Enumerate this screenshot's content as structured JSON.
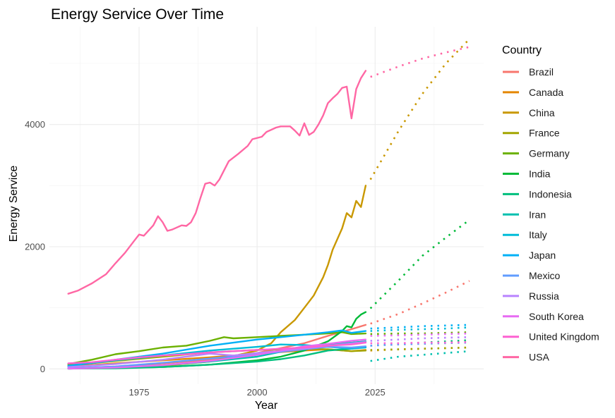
{
  "chart_data": {
    "type": "line",
    "title": "Energy Service Over Time",
    "xlabel": "Year",
    "ylabel": "Energy Service",
    "xlim": [
      1956,
      2048
    ],
    "ylim": [
      -250,
      5600
    ],
    "xticks": [
      1975,
      2000,
      2025
    ],
    "yticks": [
      0,
      2000,
      4000
    ],
    "grid": true,
    "legend": {
      "title": "Country",
      "position": "right"
    },
    "note": "solid = historical (1960–2023), dotted = projection (2024–2045)",
    "series": [
      {
        "name": "Brazil",
        "color": "#F8766D",
        "historical": [
          [
            1960,
            10
          ],
          [
            1970,
            40
          ],
          [
            1980,
            90
          ],
          [
            1990,
            150
          ],
          [
            2000,
            260
          ],
          [
            2010,
            420
          ],
          [
            2015,
            540
          ],
          [
            2020,
            650
          ],
          [
            2023,
            720
          ]
        ],
        "projection": [
          [
            2024,
            740
          ],
          [
            2030,
            900
          ],
          [
            2035,
            1070
          ],
          [
            2040,
            1250
          ],
          [
            2045,
            1440
          ]
        ]
      },
      {
        "name": "Canada",
        "color": "#E58700",
        "historical": [
          [
            1960,
            40
          ],
          [
            1970,
            90
          ],
          [
            1980,
            140
          ],
          [
            1990,
            190
          ],
          [
            2000,
            250
          ],
          [
            2010,
            300
          ],
          [
            2015,
            320
          ],
          [
            2020,
            290
          ],
          [
            2023,
            310
          ]
        ],
        "projection": [
          [
            2024,
            300
          ],
          [
            2030,
            320
          ],
          [
            2035,
            330
          ],
          [
            2040,
            340
          ],
          [
            2045,
            350
          ]
        ]
      },
      {
        "name": "China",
        "color": "#C99800",
        "historical": [
          [
            1960,
            10
          ],
          [
            1970,
            20
          ],
          [
            1980,
            50
          ],
          [
            1990,
            120
          ],
          [
            2000,
            300
          ],
          [
            2003,
            420
          ],
          [
            2005,
            600
          ],
          [
            2008,
            800
          ],
          [
            2010,
            1000
          ],
          [
            2012,
            1200
          ],
          [
            2014,
            1500
          ],
          [
            2015,
            1700
          ],
          [
            2016,
            1950
          ],
          [
            2018,
            2300
          ],
          [
            2019,
            2550
          ],
          [
            2020,
            2480
          ],
          [
            2021,
            2750
          ],
          [
            2022,
            2650
          ],
          [
            2023,
            3000
          ]
        ],
        "projection": [
          [
            2024,
            3100
          ],
          [
            2030,
            3900
          ],
          [
            2035,
            4500
          ],
          [
            2040,
            5000
          ],
          [
            2045,
            5400
          ]
        ]
      },
      {
        "name": "France",
        "color": "#A3A500",
        "historical": [
          [
            1960,
            60
          ],
          [
            1970,
            130
          ],
          [
            1980,
            200
          ],
          [
            1990,
            270
          ],
          [
            2000,
            310
          ],
          [
            2010,
            330
          ],
          [
            2015,
            320
          ],
          [
            2020,
            290
          ],
          [
            2023,
            300
          ]
        ],
        "projection": [
          [
            2024,
            310
          ],
          [
            2030,
            320
          ],
          [
            2035,
            330
          ],
          [
            2040,
            340
          ],
          [
            2045,
            350
          ]
        ]
      },
      {
        "name": "Germany",
        "color": "#6BB100",
        "historical": [
          [
            1960,
            80
          ],
          [
            1965,
            150
          ],
          [
            1970,
            240
          ],
          [
            1975,
            290
          ],
          [
            1980,
            350
          ],
          [
            1985,
            380
          ],
          [
            1990,
            460
          ],
          [
            1993,
            520
          ],
          [
            1995,
            500
          ],
          [
            2000,
            520
          ],
          [
            2005,
            540
          ],
          [
            2010,
            560
          ],
          [
            2015,
            580
          ],
          [
            2018,
            600
          ],
          [
            2020,
            570
          ],
          [
            2023,
            580
          ]
        ],
        "projection": [
          [
            2024,
            570
          ],
          [
            2030,
            580
          ],
          [
            2035,
            580
          ],
          [
            2040,
            590
          ],
          [
            2045,
            600
          ]
        ]
      },
      {
        "name": "India",
        "color": "#00BA38",
        "historical": [
          [
            1960,
            5
          ],
          [
            1970,
            15
          ],
          [
            1980,
            30
          ],
          [
            1990,
            70
          ],
          [
            2000,
            140
          ],
          [
            2005,
            200
          ],
          [
            2010,
            300
          ],
          [
            2015,
            450
          ],
          [
            2018,
            620
          ],
          [
            2019,
            700
          ],
          [
            2020,
            680
          ],
          [
            2021,
            820
          ],
          [
            2022,
            890
          ],
          [
            2023,
            930
          ]
        ],
        "projection": [
          [
            2024,
            990
          ],
          [
            2030,
            1450
          ],
          [
            2035,
            1850
          ],
          [
            2040,
            2150
          ],
          [
            2045,
            2440
          ]
        ]
      },
      {
        "name": "Indonesia",
        "color": "#00BF7D",
        "historical": [
          [
            1960,
            5
          ],
          [
            1970,
            10
          ],
          [
            1980,
            30
          ],
          [
            1990,
            70
          ],
          [
            2000,
            120
          ],
          [
            2005,
            160
          ],
          [
            2010,
            220
          ],
          [
            2015,
            300
          ],
          [
            2020,
            330
          ],
          [
            2023,
            360
          ]
        ],
        "projection": [
          [
            2024,
            380
          ],
          [
            2030,
            410
          ],
          [
            2035,
            430
          ],
          [
            2040,
            450
          ],
          [
            2045,
            470
          ]
        ]
      },
      {
        "name": "Iran",
        "color": "#00C0AF",
        "historical": [
          [
            1960,
            5
          ],
          [
            1970,
            20
          ],
          [
            1980,
            60
          ],
          [
            1990,
            120
          ],
          [
            2000,
            200
          ],
          [
            2005,
            280
          ],
          [
            2010,
            350
          ],
          [
            2015,
            400
          ],
          [
            2020,
            430
          ],
          [
            2023,
            450
          ]
        ],
        "projection": [
          [
            2024,
            130
          ],
          [
            2030,
            200
          ],
          [
            2035,
            230
          ],
          [
            2040,
            260
          ],
          [
            2045,
            290
          ]
        ]
      },
      {
        "name": "Italy",
        "color": "#00BCD8",
        "historical": [
          [
            1960,
            50
          ],
          [
            1970,
            140
          ],
          [
            1980,
            220
          ],
          [
            1990,
            300
          ],
          [
            2000,
            360
          ],
          [
            2005,
            400
          ],
          [
            2010,
            390
          ],
          [
            2015,
            360
          ],
          [
            2020,
            330
          ],
          [
            2023,
            350
          ]
        ],
        "projection": [
          [
            2024,
            620
          ],
          [
            2030,
            640
          ],
          [
            2035,
            650
          ],
          [
            2040,
            660
          ],
          [
            2045,
            680
          ]
        ]
      },
      {
        "name": "Japan",
        "color": "#00B0F6",
        "historical": [
          [
            1960,
            50
          ],
          [
            1970,
            150
          ],
          [
            1980,
            250
          ],
          [
            1990,
            380
          ],
          [
            2000,
            480
          ],
          [
            2005,
            520
          ],
          [
            2010,
            560
          ],
          [
            2015,
            600
          ],
          [
            2018,
            630
          ],
          [
            2020,
            590
          ],
          [
            2023,
            620
          ]
        ],
        "projection": [
          [
            2024,
            660
          ],
          [
            2030,
            680
          ],
          [
            2035,
            700
          ],
          [
            2040,
            710
          ],
          [
            2045,
            720
          ]
        ]
      },
      {
        "name": "Mexico",
        "color": "#619CFF",
        "historical": [
          [
            1960,
            10
          ],
          [
            1970,
            40
          ],
          [
            1980,
            100
          ],
          [
            1990,
            170
          ],
          [
            2000,
            240
          ],
          [
            2010,
            320
          ],
          [
            2015,
            360
          ],
          [
            2020,
            350
          ],
          [
            2023,
            370
          ]
        ],
        "projection": [
          [
            2024,
            380
          ],
          [
            2030,
            400
          ],
          [
            2035,
            410
          ],
          [
            2040,
            420
          ],
          [
            2045,
            430
          ]
        ]
      },
      {
        "name": "Russia",
        "color": "#B983FF",
        "historical": [
          [
            1960,
            30
          ],
          [
            1970,
            80
          ],
          [
            1980,
            150
          ],
          [
            1990,
            250
          ],
          [
            1995,
            220
          ],
          [
            2000,
            260
          ],
          [
            2010,
            330
          ],
          [
            2015,
            380
          ],
          [
            2020,
            420
          ],
          [
            2023,
            440
          ]
        ],
        "projection": [
          [
            2024,
            460
          ],
          [
            2030,
            480
          ],
          [
            2035,
            500
          ],
          [
            2040,
            510
          ],
          [
            2045,
            520
          ]
        ]
      },
      {
        "name": "South Korea",
        "color": "#E76BF3",
        "historical": [
          [
            1960,
            5
          ],
          [
            1970,
            20
          ],
          [
            1980,
            60
          ],
          [
            1990,
            130
          ],
          [
            2000,
            230
          ],
          [
            2005,
            300
          ],
          [
            2010,
            370
          ],
          [
            2015,
            410
          ],
          [
            2020,
            460
          ],
          [
            2023,
            480
          ]
        ],
        "projection": [
          [
            2024,
            540
          ],
          [
            2030,
            550
          ],
          [
            2035,
            560
          ],
          [
            2040,
            570
          ],
          [
            2045,
            580
          ]
        ]
      },
      {
        "name": "United Kingdom",
        "color": "#FD61D1",
        "historical": [
          [
            1960,
            90
          ],
          [
            1965,
            110
          ],
          [
            1970,
            150
          ],
          [
            1975,
            190
          ],
          [
            1980,
            220
          ],
          [
            1985,
            240
          ],
          [
            1990,
            270
          ],
          [
            1995,
            290
          ],
          [
            2000,
            310
          ],
          [
            2005,
            330
          ],
          [
            2010,
            350
          ],
          [
            2015,
            380
          ],
          [
            2020,
            400
          ],
          [
            2023,
            430
          ]
        ],
        "projection": [
          [
            2024,
            420
          ],
          [
            2030,
            420
          ],
          [
            2035,
            430
          ],
          [
            2040,
            430
          ],
          [
            2045,
            440
          ]
        ]
      },
      {
        "name": "USA",
        "color": "#FF67A4",
        "historical": [
          [
            1960,
            1230
          ],
          [
            1962,
            1280
          ],
          [
            1965,
            1400
          ],
          [
            1968,
            1550
          ],
          [
            1970,
            1730
          ],
          [
            1972,
            1900
          ],
          [
            1974,
            2100
          ],
          [
            1975,
            2200
          ],
          [
            1976,
            2180
          ],
          [
            1978,
            2350
          ],
          [
            1979,
            2500
          ],
          [
            1980,
            2400
          ],
          [
            1981,
            2260
          ],
          [
            1982,
            2280
          ],
          [
            1984,
            2350
          ],
          [
            1985,
            2340
          ],
          [
            1986,
            2400
          ],
          [
            1987,
            2550
          ],
          [
            1988,
            2800
          ],
          [
            1989,
            3030
          ],
          [
            1990,
            3050
          ],
          [
            1991,
            3000
          ],
          [
            1992,
            3100
          ],
          [
            1993,
            3250
          ],
          [
            1994,
            3400
          ],
          [
            1996,
            3520
          ],
          [
            1998,
            3650
          ],
          [
            1999,
            3760
          ],
          [
            2001,
            3800
          ],
          [
            2002,
            3880
          ],
          [
            2004,
            3950
          ],
          [
            2005,
            3970
          ],
          [
            2007,
            3970
          ],
          [
            2008,
            3900
          ],
          [
            2009,
            3820
          ],
          [
            2010,
            4020
          ],
          [
            2011,
            3830
          ],
          [
            2012,
            3880
          ],
          [
            2013,
            4000
          ],
          [
            2014,
            4150
          ],
          [
            2015,
            4350
          ],
          [
            2016,
            4430
          ],
          [
            2017,
            4500
          ],
          [
            2018,
            4600
          ],
          [
            2019,
            4620
          ],
          [
            2020,
            4100
          ],
          [
            2021,
            4580
          ],
          [
            2022,
            4760
          ],
          [
            2023,
            4880
          ]
        ],
        "projection": [
          [
            2024,
            4780
          ],
          [
            2030,
            4950
          ],
          [
            2035,
            5080
          ],
          [
            2040,
            5180
          ],
          [
            2045,
            5270
          ]
        ]
      }
    ]
  }
}
